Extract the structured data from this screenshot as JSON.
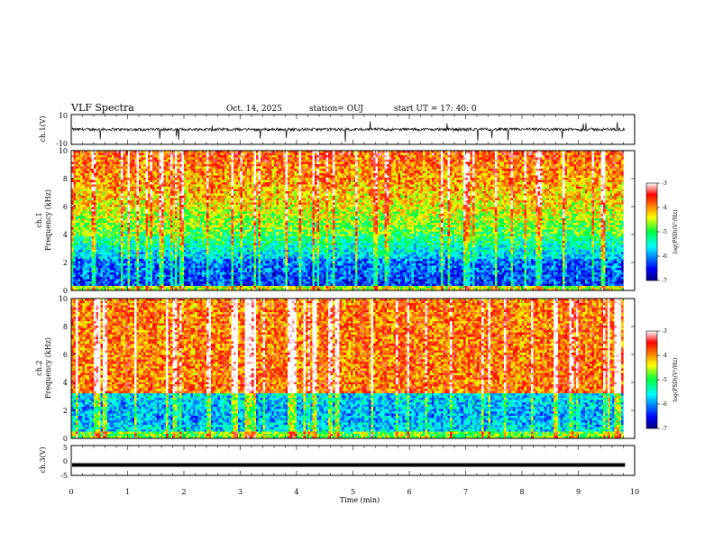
{
  "header": {
    "title": "VLF Spectra",
    "date": "Oct. 14, 2025",
    "station": "station= OUJ",
    "start": "start  UT  =    17: 40: 0"
  },
  "chart_data": [
    {
      "type": "line",
      "panel": "waveform-ch1",
      "ylabel": "ch.1(V)",
      "ylim": [
        -10,
        10
      ],
      "yticks": [
        "10",
        "-10"
      ],
      "xlim": [
        0,
        10
      ],
      "noise_amplitude": 1.0,
      "baseline": 0
    },
    {
      "type": "heatmap",
      "panel": "spectrogram-ch1",
      "ylabel_top": "ch.1",
      "ylabel": "Frequency (kHz)",
      "ylim": [
        0,
        10
      ],
      "yticks": [
        "0",
        "2",
        "4",
        "6",
        "8",
        "10"
      ],
      "xlim": [
        0,
        9.83
      ],
      "colorbar": {
        "label": "log(PSD)(V²/Hz)",
        "range": [
          -7,
          -3
        ],
        "ticks": [
          "-3",
          "-4",
          "-5",
          "-6",
          "-7"
        ]
      }
    },
    {
      "type": "heatmap",
      "panel": "spectrogram-ch2",
      "ylabel_top": "ch.2",
      "ylabel": "Frequency (kHz)",
      "ylim": [
        0,
        10
      ],
      "yticks": [
        "0",
        "2",
        "4",
        "6",
        "8",
        "10"
      ],
      "xlim": [
        0,
        9.83
      ],
      "colorbar": {
        "label": "log(PSD)(V²/Hz)",
        "range": [
          -7,
          -3
        ],
        "ticks": [
          "-3",
          "-4",
          "-5",
          "-6",
          "-7"
        ]
      }
    },
    {
      "type": "line",
      "panel": "waveform-ch3",
      "ylabel": "ch.3(V)",
      "ylim": [
        -5,
        5
      ],
      "yticks": [
        "5",
        "0",
        "-5"
      ],
      "xlim": [
        0,
        10
      ],
      "baseline": -1.5
    }
  ],
  "xaxis": {
    "label": "Time (min)",
    "range": [
      0,
      10
    ],
    "ticks": [
      "0",
      "1",
      "2",
      "3",
      "4",
      "5",
      "6",
      "7",
      "8",
      "9",
      "10"
    ]
  }
}
